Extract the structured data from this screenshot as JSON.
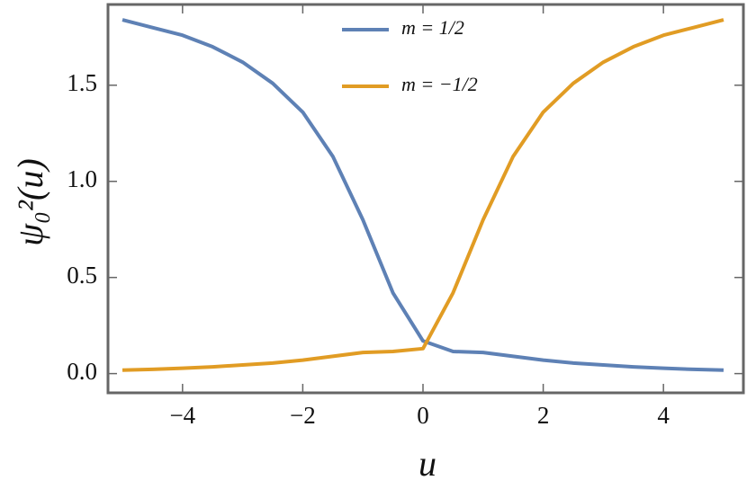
{
  "chart_data": {
    "type": "line",
    "x_label": "u",
    "y_label": "ψ₀²(u)",
    "x": [
      -5,
      -4.5,
      -4,
      -3.5,
      -3,
      -2.5,
      -2,
      -1.5,
      -1,
      -0.5,
      0,
      0.5,
      1,
      1.5,
      2,
      2.5,
      3,
      3.5,
      4,
      4.5,
      5
    ],
    "series": [
      {
        "name": "m = 1/2",
        "color": "#5e81b5",
        "values": [
          1.84,
          1.8,
          1.76,
          1.7,
          1.62,
          1.51,
          1.36,
          1.13,
          0.8,
          0.42,
          0.17,
          0.115,
          0.11,
          0.09,
          0.07,
          0.055,
          0.045,
          0.035,
          0.028,
          0.022,
          0.018
        ]
      },
      {
        "name": "m = −1/2",
        "color": "#e19c24",
        "values": [
          0.018,
          0.022,
          0.028,
          0.035,
          0.045,
          0.055,
          0.07,
          0.09,
          0.11,
          0.115,
          0.13,
          0.42,
          0.8,
          1.13,
          1.36,
          1.51,
          1.62,
          1.7,
          1.76,
          1.8,
          1.84
        ]
      }
    ],
    "xlim": [
      -5.24,
      5.33
    ],
    "ylim": [
      -0.1,
      1.92
    ],
    "xticks": [
      {
        "value": -4,
        "label": "−4"
      },
      {
        "value": -2,
        "label": "−2"
      },
      0,
      2,
      4
    ],
    "yticks": [
      {
        "value": 0,
        "label": "0.0"
      },
      {
        "value": 0.5,
        "label": "0.5"
      },
      {
        "value": 1,
        "label": "1.0"
      },
      {
        "value": 1.5,
        "label": "1.5"
      }
    ],
    "legend": "top"
  }
}
